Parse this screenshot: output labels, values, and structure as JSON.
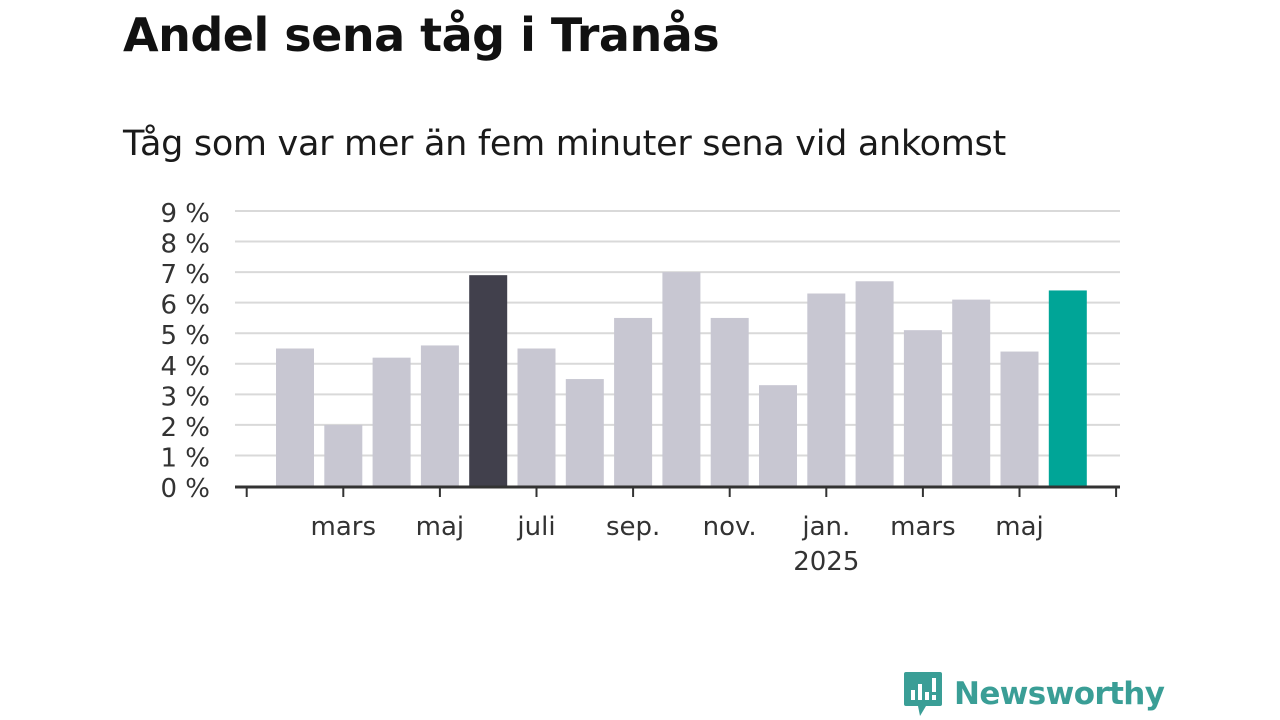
{
  "title": "Andel sena tåg i Tranås",
  "subtitle": "Tåg som var mer än fem minuter sena vid ankomst",
  "brand": {
    "name": "Newsworthy",
    "color": "#3a9e96"
  },
  "colors": {
    "bar": "#c8c7d2",
    "highlight_dark": "#41404c",
    "highlight_latest": "#00a597",
    "grid": "#d9d9d9",
    "axis": "#333333"
  },
  "chart_data": {
    "type": "bar",
    "title": "Andel sena tåg i Tranås",
    "subtitle": "Tåg som var mer än fem minuter sena vid ankomst",
    "values": [
      4.5,
      2.0,
      4.2,
      4.6,
      6.9,
      4.5,
      3.5,
      5.5,
      7.0,
      5.5,
      3.3,
      6.3,
      6.7,
      5.1,
      6.1,
      4.4,
      6.4
    ],
    "highlight": {
      "4": "highlight_dark",
      "16": "highlight_latest"
    },
    "ylim": [
      0,
      9
    ],
    "yticks": [
      {
        "value": 0,
        "label": "0 %"
      },
      {
        "value": 1,
        "label": "1 %"
      },
      {
        "value": 2,
        "label": "2 %"
      },
      {
        "value": 3,
        "label": "3 %"
      },
      {
        "value": 4,
        "label": "4 %"
      },
      {
        "value": 5,
        "label": "5 %"
      },
      {
        "value": 6,
        "label": "6 %"
      },
      {
        "value": 7,
        "label": "7 %"
      },
      {
        "value": 8,
        "label": "8 %"
      },
      {
        "value": 9,
        "label": "9 %"
      }
    ],
    "xlabels": [
      {
        "index": 1,
        "label": "mars"
      },
      {
        "index": 3,
        "label": "maj"
      },
      {
        "index": 5,
        "label": "juli"
      },
      {
        "index": 7,
        "label": "sep."
      },
      {
        "index": 9,
        "label": "nov."
      },
      {
        "index": 11,
        "label": "jan.",
        "sublabel": "2025"
      },
      {
        "index": 13,
        "label": "mars"
      },
      {
        "index": 15,
        "label": "maj"
      }
    ],
    "grid": true
  }
}
